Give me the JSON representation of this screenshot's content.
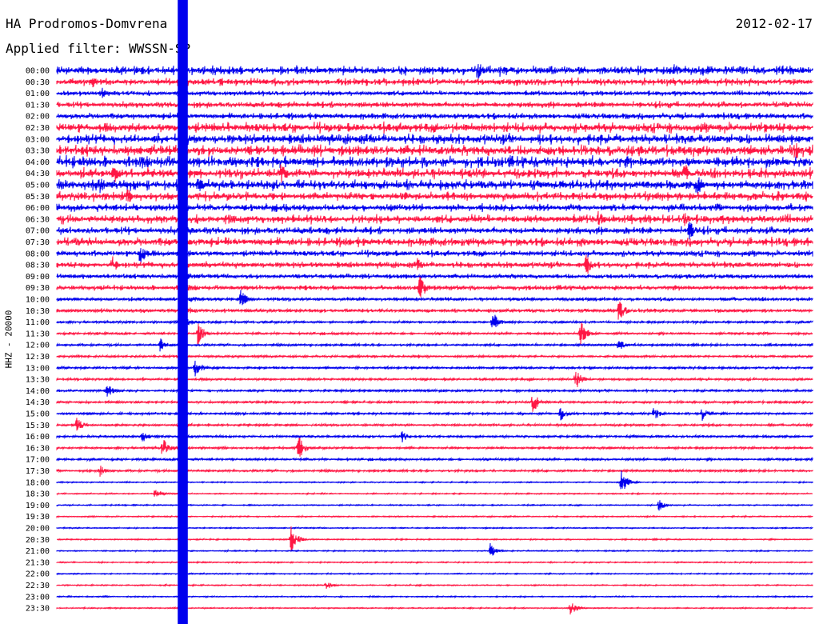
{
  "header": {
    "station": "HA Prodromos-Domvrena",
    "date": "2012-02-17",
    "filter": "Applied filter: WWSSN-SP",
    "channel": "HHZ - 20000"
  },
  "colors": {
    "even_row": "#0000ee",
    "odd_row": "#ff1744"
  },
  "chart_data": {
    "type": "line",
    "title": "HA Prodromos-Domvrena",
    "subtitle": "Applied filter: WWSSN-SP",
    "ylabel": "HHZ - 20000",
    "xlabel": "",
    "row_labels": [
      "00:00",
      "00:30",
      "01:00",
      "01:30",
      "02:00",
      "02:30",
      "03:00",
      "03:30",
      "04:00",
      "04:30",
      "05:00",
      "05:30",
      "06:00",
      "06:30",
      "07:00",
      "07:30",
      "08:00",
      "08:30",
      "09:00",
      "09:30",
      "10:00",
      "10:30",
      "11:00",
      "11:30",
      "12:00",
      "12:30",
      "13:00",
      "13:30",
      "14:00",
      "14:30",
      "15:00",
      "15:30",
      "16:00",
      "16:30",
      "17:00",
      "17:30",
      "18:00",
      "18:30",
      "19:00",
      "19:30",
      "20:00",
      "20:30",
      "21:00",
      "21:30",
      "22:00",
      "22:30",
      "23:00",
      "23:30"
    ],
    "row_duration_minutes": 30,
    "noise_amplitude_per_row": [
      7,
      6,
      4,
      5,
      5,
      8,
      8,
      9,
      9,
      8,
      8,
      7,
      6,
      7,
      6,
      7,
      5,
      5,
      4,
      4,
      3,
      3,
      2,
      2,
      2,
      2,
      2,
      2,
      2,
      2,
      2,
      2,
      2,
      2,
      2,
      2,
      1,
      1,
      1,
      1,
      1,
      1,
      1,
      1,
      1,
      1,
      1,
      1
    ],
    "large_event": {
      "start_row": "00:00",
      "start_minute": 4.8,
      "duration_minutes": 0.4,
      "coda_rows": [
        "07:00",
        "07:30",
        "08:00",
        "08:30",
        "09:00",
        "09:30",
        "10:00",
        "10:30",
        "11:00"
      ]
    },
    "events": [
      {
        "row": "00:00",
        "minute": 16.7,
        "amplitude": 14
      },
      {
        "row": "00:00",
        "minute": 17.6,
        "amplitude": 10
      },
      {
        "row": "00:00",
        "minute": 24.5,
        "amplitude": 10
      },
      {
        "row": "00:30",
        "minute": 1.4,
        "amplitude": 8
      },
      {
        "row": "01:00",
        "minute": 1.8,
        "amplitude": 8
      },
      {
        "row": "03:30",
        "minute": 29.3,
        "amplitude": 14
      },
      {
        "row": "04:00",
        "minute": 3.4,
        "amplitude": 10
      },
      {
        "row": "04:30",
        "minute": 2.3,
        "amplitude": 12
      },
      {
        "row": "04:30",
        "minute": 8.9,
        "amplitude": 14
      },
      {
        "row": "04:30",
        "minute": 24.9,
        "amplitude": 16
      },
      {
        "row": "05:00",
        "minute": 1.7,
        "amplitude": 14
      },
      {
        "row": "05:00",
        "minute": 5.6,
        "amplitude": 12
      },
      {
        "row": "05:00",
        "minute": 25.4,
        "amplitude": 16
      },
      {
        "row": "05:30",
        "minute": 2.8,
        "amplitude": 12
      },
      {
        "row": "06:30",
        "minute": 21.5,
        "amplitude": 12
      },
      {
        "row": "06:30",
        "minute": 24.9,
        "amplitude": 10
      },
      {
        "row": "07:00",
        "minute": 25.1,
        "amplitude": 14
      },
      {
        "row": "07:30",
        "minute": 11.5,
        "amplitude": 8
      },
      {
        "row": "07:30",
        "minute": 20.8,
        "amplitude": 8
      },
      {
        "row": "08:00",
        "minute": 3.3,
        "amplitude": 16
      },
      {
        "row": "08:30",
        "minute": 2.2,
        "amplitude": 12
      },
      {
        "row": "08:30",
        "minute": 21.0,
        "amplitude": 16
      },
      {
        "row": "08:30",
        "minute": 14.3,
        "amplitude": 10
      },
      {
        "row": "09:30",
        "minute": 14.4,
        "amplitude": 18
      },
      {
        "row": "10:00",
        "minute": 7.3,
        "amplitude": 12
      },
      {
        "row": "10:30",
        "minute": 22.3,
        "amplitude": 16
      },
      {
        "row": "11:00",
        "minute": 17.3,
        "amplitude": 14
      },
      {
        "row": "11:30",
        "minute": 5.6,
        "amplitude": 16
      },
      {
        "row": "11:30",
        "minute": 20.8,
        "amplitude": 18
      },
      {
        "row": "12:00",
        "minute": 4.1,
        "amplitude": 10
      },
      {
        "row": "12:00",
        "minute": 22.3,
        "amplitude": 8
      },
      {
        "row": "13:00",
        "minute": 5.5,
        "amplitude": 14
      },
      {
        "row": "13:30",
        "minute": 20.6,
        "amplitude": 14
      },
      {
        "row": "14:00",
        "minute": 2.0,
        "amplitude": 10
      },
      {
        "row": "14:30",
        "minute": 18.9,
        "amplitude": 14
      },
      {
        "row": "15:00",
        "minute": 20.0,
        "amplitude": 10
      },
      {
        "row": "15:00",
        "minute": 23.7,
        "amplitude": 10
      },
      {
        "row": "15:00",
        "minute": 25.6,
        "amplitude": 10
      },
      {
        "row": "15:30",
        "minute": 0.8,
        "amplitude": 10
      },
      {
        "row": "16:00",
        "minute": 3.4,
        "amplitude": 8
      },
      {
        "row": "16:00",
        "minute": 13.7,
        "amplitude": 8
      },
      {
        "row": "16:30",
        "minute": 4.2,
        "amplitude": 14
      },
      {
        "row": "16:30",
        "minute": 9.6,
        "amplitude": 16
      },
      {
        "row": "17:30",
        "minute": 1.7,
        "amplitude": 8
      },
      {
        "row": "18:00",
        "minute": 22.4,
        "amplitude": 16
      },
      {
        "row": "18:30",
        "minute": 3.9,
        "amplitude": 8
      },
      {
        "row": "19:00",
        "minute": 23.9,
        "amplitude": 8
      },
      {
        "row": "20:30",
        "minute": 9.3,
        "amplitude": 18
      },
      {
        "row": "21:00",
        "minute": 17.2,
        "amplitude": 10
      },
      {
        "row": "22:30",
        "minute": 10.7,
        "amplitude": 6
      },
      {
        "row": "23:30",
        "minute": 20.4,
        "amplitude": 10
      }
    ]
  }
}
